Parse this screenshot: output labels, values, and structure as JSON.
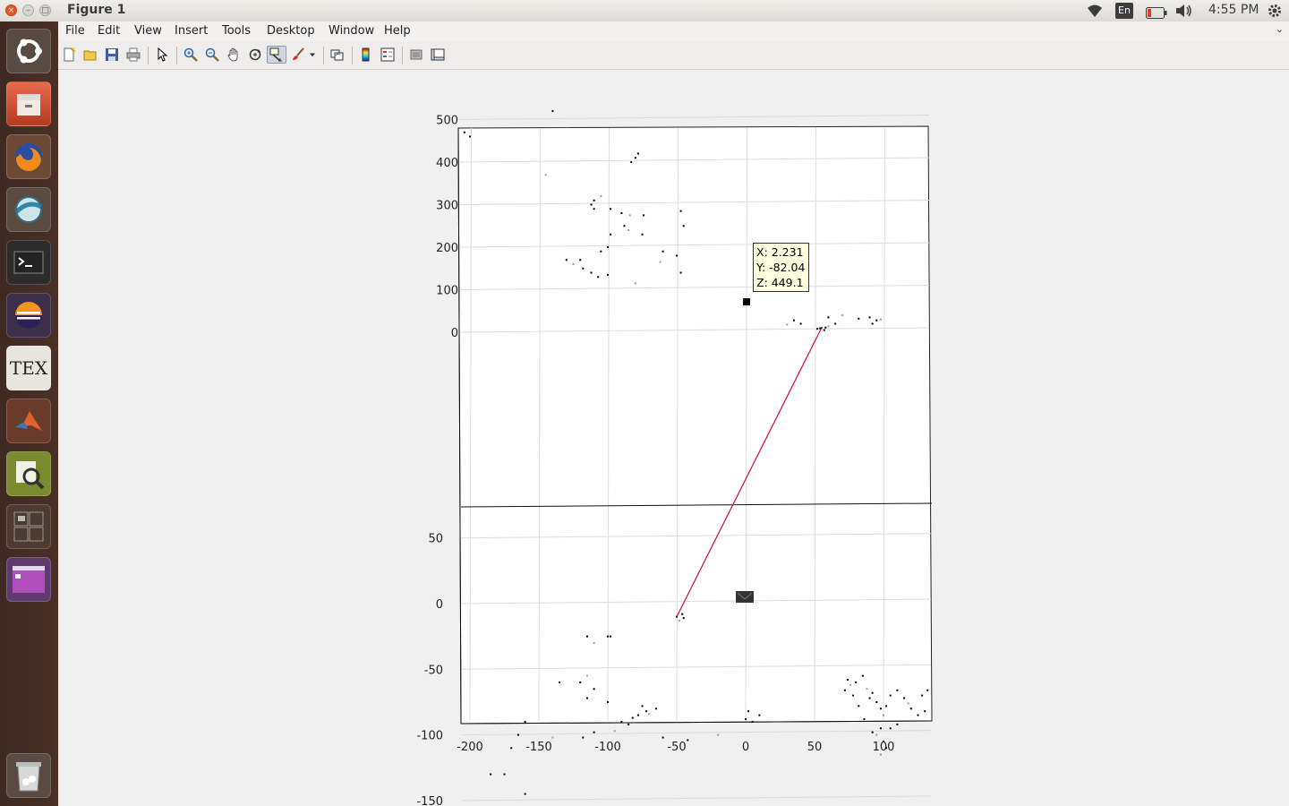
{
  "window": {
    "title": "Figure 1",
    "close_glyph": "×",
    "min_glyph": "–",
    "max_glyph": "□"
  },
  "system_tray": {
    "icons": [
      "wifi-icon",
      "keyboard-layout-indicator",
      "battery-icon",
      "volume-icon",
      "settings-gear-icon"
    ],
    "keyboard_layout": "En",
    "clock": "4:55 PM"
  },
  "launcher": {
    "items": [
      {
        "name": "dash-home",
        "icon": "ubuntu-logo-icon"
      },
      {
        "name": "files",
        "icon": "file-cabinet-icon"
      },
      {
        "name": "firefox",
        "icon": "firefox-icon"
      },
      {
        "name": "browser-network",
        "icon": "globe-icon"
      },
      {
        "name": "terminal",
        "icon": "terminal-icon"
      },
      {
        "name": "eclipse",
        "icon": "eclipse-icon"
      },
      {
        "name": "texmaker",
        "icon": "tex-icon"
      },
      {
        "name": "matlab",
        "icon": "matlab-icon"
      },
      {
        "name": "system-monitor",
        "icon": "magnifier-chart-icon"
      },
      {
        "name": "workspace-switcher",
        "icon": "workspaces-icon"
      },
      {
        "name": "window-app",
        "icon": "purple-window-icon"
      },
      {
        "name": "trash",
        "icon": "trash-icon"
      }
    ],
    "tex_label": "TEX"
  },
  "menubar": {
    "items": [
      {
        "label": "File",
        "hotkey": "F"
      },
      {
        "label": "Edit",
        "hotkey": "E"
      },
      {
        "label": "View",
        "hotkey": "V"
      },
      {
        "label": "Insert",
        "hotkey": "I"
      },
      {
        "label": "Tools",
        "hotkey": "T"
      },
      {
        "label": "Desktop",
        "hotkey": "D"
      },
      {
        "label": "Window",
        "hotkey": "W"
      },
      {
        "label": "Help",
        "hotkey": "H"
      }
    ],
    "overflow_glyph": "⌄"
  },
  "toolbar": {
    "buttons": [
      {
        "name": "new-figure-button",
        "icon": "new-file-icon"
      },
      {
        "name": "open-file-button",
        "icon": "open-folder-icon"
      },
      {
        "name": "save-figure-button",
        "icon": "save-disk-icon"
      },
      {
        "name": "print-figure-button",
        "icon": "printer-icon"
      },
      {
        "name": "edit-plot-button",
        "icon": "pointer-arrow-icon"
      },
      {
        "name": "zoom-in-button",
        "icon": "zoom-in-icon"
      },
      {
        "name": "zoom-out-button",
        "icon": "zoom-out-icon"
      },
      {
        "name": "pan-button",
        "icon": "hand-icon"
      },
      {
        "name": "rotate-3d-button",
        "icon": "rotate-icon"
      },
      {
        "name": "data-cursor-button",
        "icon": "data-cursor-icon",
        "active": true
      },
      {
        "name": "brush-button",
        "icon": "brush-icon"
      },
      {
        "name": "link-plot-button",
        "icon": "link-icon"
      },
      {
        "name": "insert-colorbar-button",
        "icon": "colorbar-icon"
      },
      {
        "name": "insert-legend-button",
        "icon": "legend-icon"
      },
      {
        "name": "hide-plot-tools-button",
        "icon": "hide-tools-icon"
      },
      {
        "name": "show-plot-tools-button",
        "icon": "show-tools-icon"
      }
    ]
  },
  "data_tip": {
    "x_line": "X: 2.231",
    "y_line": "Y: -82.04",
    "z_line": "Z: 449.1"
  },
  "chart_data": {
    "type": "scatter",
    "title": "",
    "xlabel": "",
    "ylabel": "",
    "x_ticks": [
      "-200",
      "-150",
      "-100",
      "-50",
      "0",
      "50",
      "100"
    ],
    "x_tick_values": [
      -200,
      -150,
      -100,
      -50,
      0,
      50,
      100
    ],
    "y_ticks_far": [
      "500",
      "400",
      "300",
      "200",
      "100",
      "0"
    ],
    "y_ticks_near": [
      "-150",
      "-100",
      "-50",
      "0",
      "50"
    ],
    "xlim": [
      -208,
      135
    ],
    "view": "3d",
    "grid": true,
    "series": [
      {
        "values_xy": [
          [
            -204,
            470
          ],
          [
            -200,
            460
          ],
          [
            -140,
            520
          ],
          [
            -145,
            370
          ],
          [
            -78,
            420
          ],
          [
            -80,
            410
          ],
          [
            -83,
            400
          ],
          [
            -110,
            310
          ],
          [
            -105,
            320
          ],
          [
            -112,
            300
          ],
          [
            -110,
            290
          ],
          [
            -98,
            290
          ],
          [
            -90,
            280
          ],
          [
            -84,
            275
          ],
          [
            -74,
            275
          ],
          [
            -47,
            285
          ],
          [
            -45,
            250
          ],
          [
            -60,
            190
          ],
          [
            -62,
            165
          ],
          [
            -50,
            180
          ],
          [
            -98,
            230
          ],
          [
            -88,
            250
          ],
          [
            -75,
            230
          ],
          [
            -85,
            240
          ],
          [
            -100,
            200
          ],
          [
            -105,
            190
          ],
          [
            -120,
            170
          ],
          [
            -130,
            170
          ],
          [
            -125,
            160
          ],
          [
            -118,
            150
          ],
          [
            -112,
            140
          ],
          [
            -100,
            135
          ],
          [
            -107,
            130
          ],
          [
            -80,
            115
          ],
          [
            -47,
            140
          ],
          [
            2,
            -82
          ],
          [
            5,
            -90
          ],
          [
            -115,
            -25
          ],
          [
            -110,
            -30
          ],
          [
            -100,
            -25
          ],
          [
            -98,
            -25
          ],
          [
            -135,
            -60
          ],
          [
            -120,
            -60
          ],
          [
            -115,
            -55
          ],
          [
            -110,
            -65
          ],
          [
            -115,
            -72
          ],
          [
            -160,
            -90
          ],
          [
            -165,
            -100
          ],
          [
            -140,
            -102
          ],
          [
            -170,
            -110
          ],
          [
            -185,
            -130
          ],
          [
            -175,
            -130
          ],
          [
            -160,
            -145
          ],
          [
            30,
            18
          ],
          [
            35,
            28
          ],
          [
            40,
            20
          ],
          [
            65,
            20
          ],
          [
            60,
            35
          ],
          [
            70,
            40
          ],
          [
            82,
            32
          ],
          [
            90,
            35
          ],
          [
            92,
            20
          ],
          [
            95,
            28
          ],
          [
            98,
            30
          ],
          [
            -100,
            -75
          ],
          [
            -75,
            -78
          ],
          [
            -72,
            -82
          ],
          [
            -65,
            -80
          ],
          [
            -70,
            -84
          ],
          [
            -78,
            -85
          ],
          [
            -82,
            -87
          ],
          [
            -90,
            -90
          ],
          [
            -85,
            -92
          ],
          [
            -95,
            -97
          ],
          [
            -110,
            -98
          ],
          [
            -118,
            -102
          ],
          [
            -60,
            -102
          ],
          [
            -42,
            -104
          ],
          [
            -20,
            -100
          ],
          [
            0,
            -88
          ],
          [
            10,
            -85
          ],
          [
            -50,
            -10
          ],
          [
            -46,
            -8
          ],
          [
            -48,
            -13
          ],
          [
            -45,
            -11
          ],
          [
            55,
            10
          ],
          [
            58,
            11
          ],
          [
            52,
            8
          ],
          [
            60,
            14
          ],
          [
            57,
            5
          ],
          [
            54,
            9
          ],
          [
            80,
            -60
          ],
          [
            85,
            -55
          ],
          [
            88,
            -65
          ],
          [
            90,
            -72
          ],
          [
            92,
            -68
          ],
          [
            95,
            -75
          ],
          [
            98,
            -80
          ],
          [
            100,
            -85
          ],
          [
            102,
            -78
          ],
          [
            105,
            -70
          ],
          [
            110,
            -66
          ],
          [
            115,
            -72
          ],
          [
            118,
            -76
          ],
          [
            120,
            -80
          ],
          [
            125,
            -85
          ],
          [
            130,
            -82
          ],
          [
            98,
            -95
          ],
          [
            95,
            -100
          ],
          [
            100,
            -105
          ],
          [
            105,
            -95
          ],
          [
            110,
            -92
          ],
          [
            102,
            -110
          ],
          [
            98,
            -115
          ],
          [
            92,
            -98
          ],
          [
            86,
            -88
          ],
          [
            82,
            -78
          ],
          [
            78,
            -70
          ],
          [
            76,
            -62
          ],
          [
            74,
            -58
          ],
          [
            72,
            -66
          ],
          [
            128,
            -70
          ],
          [
            132,
            -66
          ]
        ]
      }
    ],
    "line_series": {
      "color": "#c8102e",
      "x": [
        -50,
        55
      ],
      "y": [
        -10,
        10
      ]
    },
    "colors": {
      "points": "#000000",
      "line": "#c8102e",
      "grid": "#dcdcdc",
      "axes_bg": "#ffffff"
    }
  }
}
